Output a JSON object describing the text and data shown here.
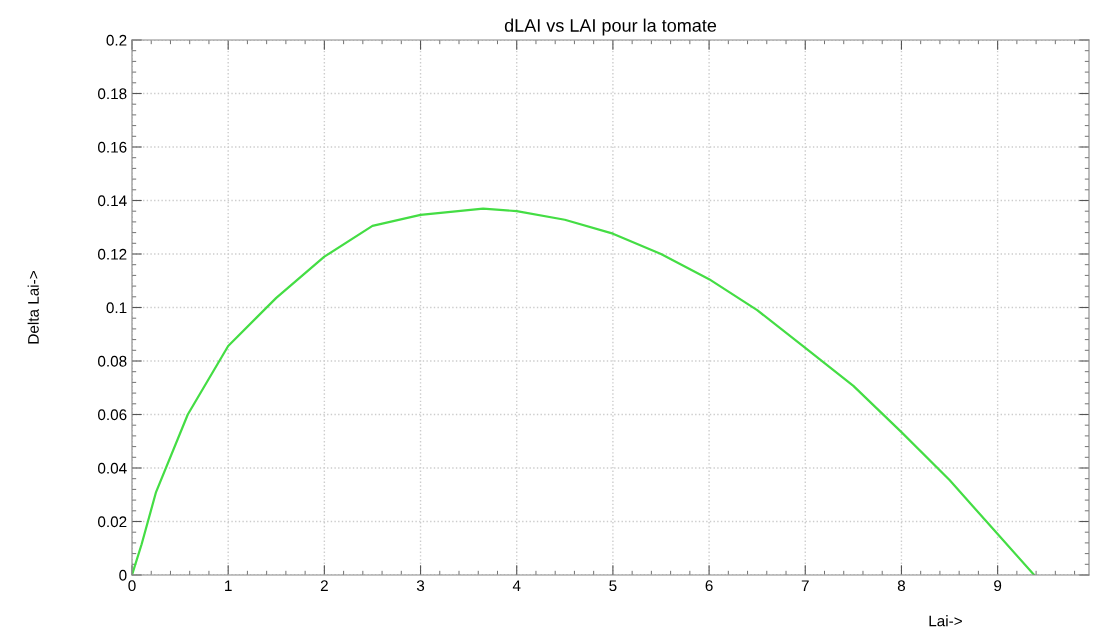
{
  "chart_data": {
    "type": "line",
    "title": "dLAI vs LAI pour la tomate",
    "xlabel": "Lai->",
    "ylabel": "Delta Lai->",
    "x": [
      0,
      0.1,
      0.25,
      0.58,
      1,
      1.5,
      2,
      2.5,
      3,
      3.65,
      4,
      4.5,
      5,
      5.5,
      6,
      6.5,
      7,
      7.5,
      8,
      8.5,
      9,
      9.38
    ],
    "series": [
      {
        "color": "#44dd44",
        "values": [
          0,
          0.0115,
          0.031,
          0.06,
          0.0856,
          0.1036,
          0.119,
          0.1305,
          0.1346,
          0.137,
          0.136,
          0.1328,
          0.1276,
          0.12,
          0.1106,
          0.099,
          0.0849,
          0.0707,
          0.0534,
          0.0355,
          0.0153,
          0
        ]
      }
    ],
    "xlim": [
      0,
      9.95
    ],
    "xticks": [
      0,
      1,
      2,
      3,
      4,
      5,
      6,
      7,
      8,
      9
    ],
    "ylim": [
      0,
      0.2
    ],
    "yticks": [
      0,
      0.02,
      0.04,
      0.06,
      0.08,
      0.1,
      0.12,
      0.14,
      0.16,
      0.18,
      0.2
    ],
    "grid": true,
    "marker": "none",
    "line_style": "solid"
  }
}
